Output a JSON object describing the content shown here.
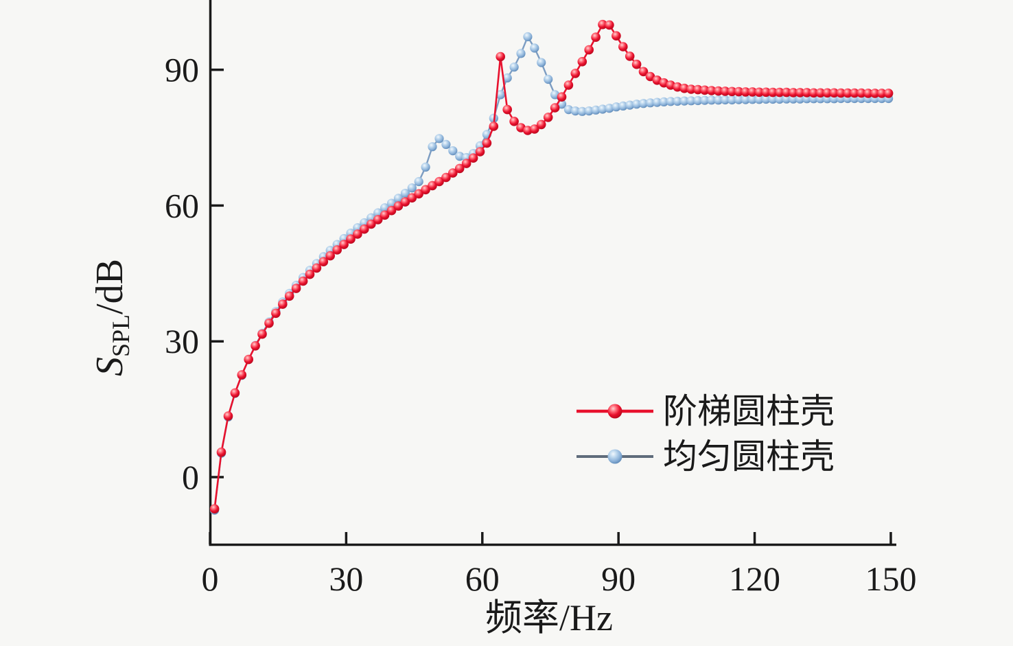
{
  "figure": {
    "background": "#f7f7f5",
    "axis_color": "#1a1a1a"
  },
  "chart_data": {
    "type": "line",
    "title": "",
    "xlabel": "频率/Hz",
    "ylabel_parts": {
      "s": "S",
      "sub": "SPL",
      "unit": "/dB"
    },
    "xlim": [
      0,
      150
    ],
    "ylim": [
      -15,
      105
    ],
    "xticks": [
      0,
      30,
      60,
      90,
      120,
      150
    ],
    "yticks": [
      0,
      30,
      60,
      90
    ],
    "grid": false,
    "legend_position": "lower right inside",
    "x": [
      1,
      2.5,
      4,
      5.5,
      7,
      8.5,
      10,
      11.5,
      13,
      14.5,
      16,
      17.5,
      19,
      20.5,
      22,
      23.5,
      25,
      26.5,
      28,
      29.5,
      31,
      32.5,
      34,
      35.5,
      37,
      38.5,
      40,
      41.5,
      43,
      44.5,
      46,
      47.5,
      49,
      50.5,
      52,
      53.5,
      55,
      56.5,
      58,
      59.5,
      61,
      62.5,
      64,
      65.5,
      67,
      68.5,
      70,
      71.5,
      73,
      74.5,
      76,
      77.5,
      79,
      80.5,
      82,
      83.5,
      85,
      86.5,
      88,
      89.5,
      91,
      92.5,
      94,
      95.5,
      97,
      98.5,
      100,
      101.5,
      103,
      104.5,
      106,
      107.5,
      109,
      110.5,
      112,
      113.5,
      115,
      116.5,
      118,
      119.5,
      121,
      122.5,
      124,
      125.5,
      127,
      128.5,
      130,
      131.5,
      133,
      134.5,
      136,
      137.5,
      139,
      140.5,
      142,
      143.5,
      145,
      146.5,
      148,
      149.5
    ],
    "series": [
      {
        "name": "均匀圆柱壳",
        "marker_color": "#8fb4da",
        "line_color": "#7d9dc2",
        "peaks": [
          {
            "hz": 50.5,
            "db": 74.8
          },
          {
            "hz": 70,
            "db": 97.3
          }
        ],
        "values": [
          -7.3,
          5.3,
          13.3,
          18.5,
          22.5,
          26,
          29.1,
          31.8,
          34.3,
          36.6,
          38.7,
          40.6,
          42.4,
          44.1,
          45.7,
          47.2,
          48.7,
          50.1,
          51.4,
          52.7,
          53.9,
          55.1,
          56.2,
          57.3,
          58.4,
          59.5,
          60.5,
          61.6,
          62.7,
          63.9,
          65.3,
          68.5,
          73,
          74.8,
          73.5,
          72.1,
          70.9,
          70.6,
          71.5,
          73.2,
          75.7,
          79.3,
          84.5,
          88.2,
          90.6,
          93.6,
          97.3,
          94.8,
          91.6,
          87.9,
          84.5,
          82.4,
          81.2,
          80.9,
          80.8,
          80.9,
          81.1,
          81.3,
          81.5,
          81.8,
          82,
          82.2,
          82.4,
          82.55,
          82.7,
          82.8,
          82.9,
          83,
          83.05,
          83.1,
          83.15,
          83.2,
          83.25,
          83.3,
          83.3,
          83.35,
          83.35,
          83.4,
          83.4,
          83.45,
          83.45,
          83.5,
          83.5,
          83.5,
          83.55,
          83.55,
          83.55,
          83.6,
          83.6,
          83.6,
          83.6,
          83.6,
          83.65,
          83.65,
          83.65,
          83.65,
          83.65,
          83.65,
          83.65,
          83.65
        ]
      },
      {
        "name": "阶梯圆柱壳",
        "marker_color": "#e8112d",
        "line_color": "#e8112d",
        "peaks": [
          {
            "hz": 64,
            "db": 92.9
          },
          {
            "hz": 87,
            "db": 100
          }
        ],
        "values": [
          -7,
          5.5,
          13.5,
          18.6,
          22.6,
          26,
          29,
          31.6,
          34,
          36.2,
          38.2,
          40,
          41.7,
          43.3,
          44.8,
          46.2,
          47.6,
          48.9,
          50.2,
          51.4,
          52.6,
          53.7,
          54.8,
          55.9,
          56.9,
          57.9,
          58.9,
          59.9,
          60.8,
          61.7,
          62.6,
          63.5,
          64.4,
          65.3,
          66.2,
          67.2,
          68.2,
          69.3,
          70.5,
          71.9,
          73.8,
          77.5,
          92.9,
          81.2,
          78.6,
          77.2,
          76.6,
          76.9,
          77.9,
          79.5,
          81.6,
          84,
          86.6,
          89.2,
          91.8,
          94.4,
          97.2,
          100,
          99.9,
          97.5,
          95.1,
          93,
          91.2,
          89.6,
          88.5,
          87.7,
          87.1,
          86.6,
          86.2,
          85.9,
          85.7,
          85.6,
          85.5,
          85.4,
          85.3,
          85.25,
          85.2,
          85.15,
          85.1,
          85.1,
          85.05,
          85.05,
          85,
          85,
          85,
          84.95,
          84.95,
          84.95,
          84.9,
          84.9,
          84.9,
          84.9,
          84.85,
          84.85,
          84.85,
          84.85,
          84.8,
          84.8,
          84.8,
          84.8
        ]
      }
    ],
    "legend": {
      "stepped_label": "阶梯圆柱壳",
      "uniform_label": "均匀圆柱壳"
    }
  }
}
